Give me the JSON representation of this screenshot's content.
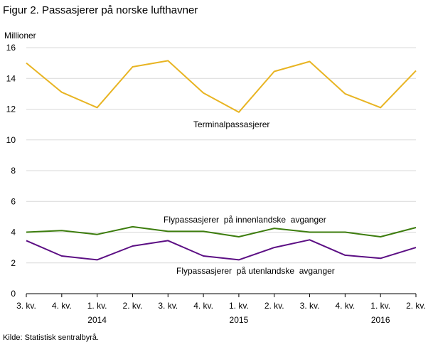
{
  "title": "Figur 2. Passasjerer på norske lufthavner",
  "source": "Kilde: Statistisk sentralbyrå.",
  "chart_data": {
    "type": "line",
    "ylabel": "Millioner",
    "ylim": [
      0,
      16
    ],
    "yticks": [
      0,
      2,
      4,
      6,
      8,
      10,
      12,
      14,
      16
    ],
    "grid": true,
    "categories": [
      "3. kv.",
      "4. kv.",
      "1. kv.",
      "2. kv.",
      "3. kv.",
      "4. kv.",
      "1. kv.",
      "2. kv.",
      "3. kv.",
      "4. kv.",
      "1. kv.",
      "2. kv."
    ],
    "year_labels": [
      {
        "label": "2014",
        "category_index": 2
      },
      {
        "label": "2015",
        "category_index": 6
      },
      {
        "label": "2016",
        "category_index": 10
      }
    ],
    "series": [
      {
        "name": "Terminalpassasjerer",
        "color": "#e8b422",
        "values": [
          15.0,
          13.1,
          12.1,
          14.75,
          15.15,
          13.05,
          11.8,
          14.45,
          15.1,
          13.0,
          12.1,
          14.5
        ]
      },
      {
        "name": "Flypassasjerer  på innenlandske  avganger",
        "color": "#3d7d0e",
        "values": [
          4.0,
          4.1,
          3.85,
          4.35,
          4.05,
          4.05,
          3.7,
          4.25,
          4.0,
          4.0,
          3.7,
          4.3
        ]
      },
      {
        "name": "Flypassasjerer  på utenlandske  avganger",
        "color": "#5c0f84",
        "values": [
          3.45,
          2.45,
          2.2,
          3.1,
          3.45,
          2.45,
          2.2,
          3.0,
          3.5,
          2.5,
          2.3,
          3.0
        ]
      }
    ]
  }
}
